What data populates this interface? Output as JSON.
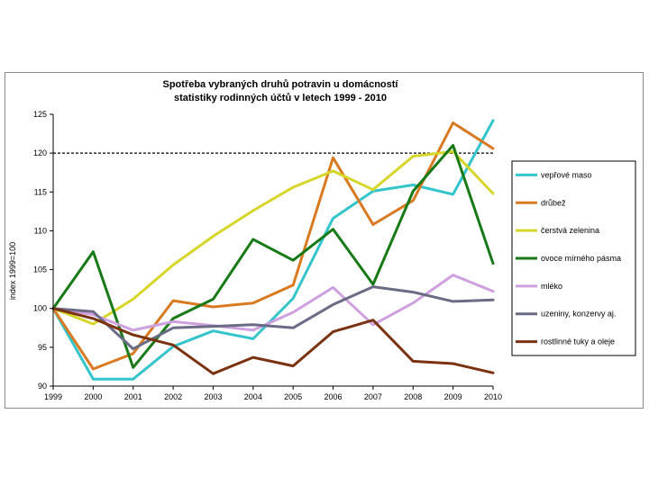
{
  "chart_data": {
    "type": "line",
    "title_lines": [
      "Spotřeba vybraných druhů potravin u domácností",
      "statistiky rodinných účtů v letech 1999 - 2010"
    ],
    "ylabel": "index 1999=100",
    "xlabel": "",
    "x": [
      "1999",
      "2000",
      "2001",
      "2002",
      "2003",
      "2004",
      "2005",
      "2006",
      "2007",
      "2008",
      "2009",
      "2010"
    ],
    "ylim": [
      90,
      125
    ],
    "yticks": [
      "90",
      "95",
      "100",
      "105",
      "110",
      "115",
      "120",
      "125"
    ],
    "reference_line": 120,
    "legend_position": "right",
    "series": [
      {
        "name": "vepřové maso",
        "color": "#33c4cc",
        "values": [
          100,
          90.9,
          90.9,
          95.1,
          97.1,
          96.1,
          101.3,
          111.6,
          115.1,
          115.9,
          114.7,
          124.2
        ]
      },
      {
        "name": "drůbež",
        "color": "#d97a22",
        "values": [
          100,
          92.2,
          94.2,
          101.0,
          100.2,
          100.7,
          103.0,
          119.4,
          110.8,
          113.9,
          123.9,
          120.6
        ]
      },
      {
        "name": "čerstvá zelenina",
        "color": "#d6d62a",
        "values": [
          100,
          98.0,
          101.2,
          105.6,
          109.3,
          112.6,
          115.6,
          117.7,
          115.3,
          119.6,
          120.2,
          114.8
        ]
      },
      {
        "name": "ovoce mírného pásma",
        "color": "#177a17",
        "values": [
          100,
          107.3,
          92.4,
          98.7,
          101.2,
          108.9,
          106.2,
          110.2,
          103.1,
          115.1,
          121.0,
          105.8
        ]
      },
      {
        "name": "mléko",
        "color": "#cfa0e0",
        "values": [
          100,
          99.2,
          97.2,
          98.3,
          97.8,
          97.2,
          99.5,
          102.7,
          97.9,
          100.7,
          104.3,
          102.2
        ]
      },
      {
        "name": "uzeniny, konzervy aj.",
        "color": "#6b6b86",
        "values": [
          100,
          99.6,
          94.8,
          97.5,
          97.7,
          97.9,
          97.5,
          100.5,
          102.8,
          102.1,
          100.9,
          101.1
        ]
      },
      {
        "name": "rostlinné tuky a oleje",
        "color": "#7a3210",
        "values": [
          100,
          98.7,
          96.6,
          95.3,
          91.6,
          93.7,
          92.6,
          97.0,
          98.5,
          93.2,
          92.9,
          91.7
        ]
      }
    ]
  }
}
